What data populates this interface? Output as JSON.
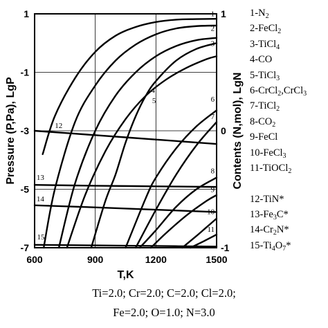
{
  "chart_data": {
    "type": "line",
    "xlabel": "T,K",
    "ylabel_left": "Pressure (P,Pa), LgP",
    "ylabel_right": "Contents (N,mol), LgN",
    "xlim": [
      600,
      1500
    ],
    "ylim_left": [
      -7,
      1
    ],
    "ylim_right": [
      -1,
      1
    ],
    "x_ticks": [
      "600",
      "900",
      "1200",
      "1500"
    ],
    "left_ticks": [
      "1",
      "-1",
      "-3",
      "-5",
      "-7"
    ],
    "right_ticks": [
      "1",
      "0",
      "-1"
    ],
    "grid": true,
    "series": [
      {
        "label": "1",
        "points": [
          [
            640,
            -3.8
          ],
          [
            700,
            -2.5
          ],
          [
            800,
            -1.2
          ],
          [
            900,
            -0.3
          ],
          [
            1000,
            0.25
          ],
          [
            1100,
            0.55
          ],
          [
            1200,
            0.72
          ],
          [
            1300,
            0.8
          ],
          [
            1400,
            0.82
          ],
          [
            1500,
            0.83
          ]
        ]
      },
      {
        "label": "2",
        "points": [
          [
            645,
            -7.0
          ],
          [
            700,
            -5.0
          ],
          [
            800,
            -2.7
          ],
          [
            900,
            -1.45
          ],
          [
            1000,
            -0.6
          ],
          [
            1100,
            -0.05
          ],
          [
            1200,
            0.3
          ],
          [
            1300,
            0.5
          ],
          [
            1400,
            0.58
          ],
          [
            1500,
            0.6
          ]
        ]
      },
      {
        "label": "3",
        "points": [
          [
            720,
            -7.0
          ],
          [
            800,
            -4.8
          ],
          [
            900,
            -3.0
          ],
          [
            1000,
            -1.8
          ],
          [
            1100,
            -1.0
          ],
          [
            1200,
            -0.45
          ],
          [
            1300,
            -0.1
          ],
          [
            1400,
            0.1
          ],
          [
            1500,
            0.18
          ]
        ]
      },
      {
        "label": "4",
        "points": [
          [
            880,
            -7.0
          ],
          [
            950,
            -5.4
          ],
          [
            1000,
            -4.5
          ],
          [
            1050,
            -3.4
          ],
          [
            1100,
            -2.5
          ],
          [
            1150,
            -1.8
          ],
          [
            1200,
            -1.3
          ],
          [
            1300,
            -0.6
          ],
          [
            1400,
            -0.2
          ],
          [
            1500,
            0.0
          ]
        ]
      },
      {
        "label": "5",
        "points": [
          [
            760,
            -7.0
          ],
          [
            850,
            -5.2
          ],
          [
            950,
            -3.7
          ],
          [
            1050,
            -2.6
          ],
          [
            1150,
            -1.8
          ],
          [
            1250,
            -1.25
          ],
          [
            1350,
            -0.85
          ],
          [
            1450,
            -0.55
          ],
          [
            1500,
            -0.45
          ]
        ]
      },
      {
        "label": "6",
        "points": [
          [
            1050,
            -7.0
          ],
          [
            1150,
            -5.3
          ],
          [
            1200,
            -4.6
          ],
          [
            1300,
            -3.6
          ],
          [
            1400,
            -2.85
          ],
          [
            1500,
            -2.3
          ]
        ]
      },
      {
        "label": "7",
        "points": [
          [
            1100,
            -7.0
          ],
          [
            1200,
            -5.7
          ],
          [
            1300,
            -4.5
          ],
          [
            1400,
            -3.5
          ],
          [
            1500,
            -2.7
          ]
        ]
      },
      {
        "label": "8",
        "points": [
          [
            1120,
            -7.0
          ],
          [
            1200,
            -6.4
          ],
          [
            1300,
            -5.6
          ],
          [
            1400,
            -5.0
          ],
          [
            1500,
            -4.6
          ]
        ]
      },
      {
        "label": "9",
        "points": [
          [
            1175,
            -7.0
          ],
          [
            1250,
            -6.5
          ],
          [
            1350,
            -5.9
          ],
          [
            1450,
            -5.4
          ],
          [
            1500,
            -5.2
          ]
        ]
      },
      {
        "label": "10",
        "points": [
          [
            1330,
            -7.0
          ],
          [
            1400,
            -6.6
          ],
          [
            1450,
            -6.3
          ],
          [
            1500,
            -6.0
          ]
        ]
      },
      {
        "label": "11",
        "points": [
          [
            1370,
            -7.0
          ],
          [
            1430,
            -6.8
          ],
          [
            1500,
            -6.55
          ]
        ]
      },
      {
        "label": "12",
        "points": [
          [
            600,
            -3.0
          ],
          [
            900,
            -3.15
          ],
          [
            1200,
            -3.3
          ],
          [
            1500,
            -3.45
          ]
        ]
      },
      {
        "label": "13",
        "points": [
          [
            600,
            -4.85
          ],
          [
            900,
            -4.88
          ],
          [
            1200,
            -4.9
          ],
          [
            1500,
            -4.92
          ]
        ]
      },
      {
        "label": "14",
        "points": [
          [
            600,
            -5.55
          ],
          [
            900,
            -5.62
          ],
          [
            1200,
            -5.7
          ],
          [
            1500,
            -5.78
          ]
        ]
      },
      {
        "label": "15",
        "points": [
          [
            600,
            -6.9
          ],
          [
            900,
            -6.92
          ],
          [
            1200,
            -6.94
          ],
          [
            1500,
            -6.96
          ]
        ]
      }
    ]
  },
  "legend": [
    {
      "num": "1-",
      "pre": "N",
      "sub1": "2",
      "mid": "",
      "sub2": "",
      "post": ""
    },
    {
      "num": "2-",
      "pre": "FeCl",
      "sub1": "2",
      "mid": "",
      "sub2": "",
      "post": ""
    },
    {
      "num": "3-",
      "pre": "TiCl",
      "sub1": "4",
      "mid": "",
      "sub2": "",
      "post": ""
    },
    {
      "num": "4-",
      "pre": "CO",
      "sub1": "",
      "mid": "",
      "sub2": "",
      "post": ""
    },
    {
      "num": "5-",
      "pre": "TiCl",
      "sub1": "3",
      "mid": "",
      "sub2": "",
      "post": ""
    },
    {
      "num": "6-",
      "pre": "CrCl",
      "sub1": "2",
      "mid": ",CrCl",
      "sub2": "3",
      "post": ""
    },
    {
      "num": "7-",
      "pre": "TiCl",
      "sub1": "2",
      "mid": "",
      "sub2": "",
      "post": ""
    },
    {
      "num": "8-",
      "pre": "CO",
      "sub1": "2",
      "mid": "",
      "sub2": "",
      "post": ""
    },
    {
      "num": "9-",
      "pre": "FeCl",
      "sub1": "",
      "mid": "",
      "sub2": "",
      "post": ""
    },
    {
      "num": "10-",
      "pre": "FeCl",
      "sub1": "3",
      "mid": "",
      "sub2": "",
      "post": ""
    },
    {
      "num": "11-",
      "pre": "TiOCl",
      "sub1": "2",
      "mid": "",
      "sub2": "",
      "post": ""
    },
    {
      "num": "12-",
      "pre": "TiN*",
      "sub1": "",
      "mid": "",
      "sub2": "",
      "post": ""
    },
    {
      "num": "13-",
      "pre": "Fe",
      "sub1": "3",
      "mid": "C*",
      "sub2": "",
      "post": ""
    },
    {
      "num": "14-",
      "pre": "Cr",
      "sub1": "2",
      "mid": "N*",
      "sub2": "",
      "post": ""
    },
    {
      "num": "15-",
      "pre": "Ti",
      "sub1": "4",
      "mid": "O",
      "sub2": "7",
      "post": "*"
    }
  ],
  "footnote": {
    "line1": "Ti=2.0;  Cr=2.0;  C=2.0;  Cl=2.0;",
    "line2": "Fe=2.0;  O=1.0;  N=3.0"
  }
}
